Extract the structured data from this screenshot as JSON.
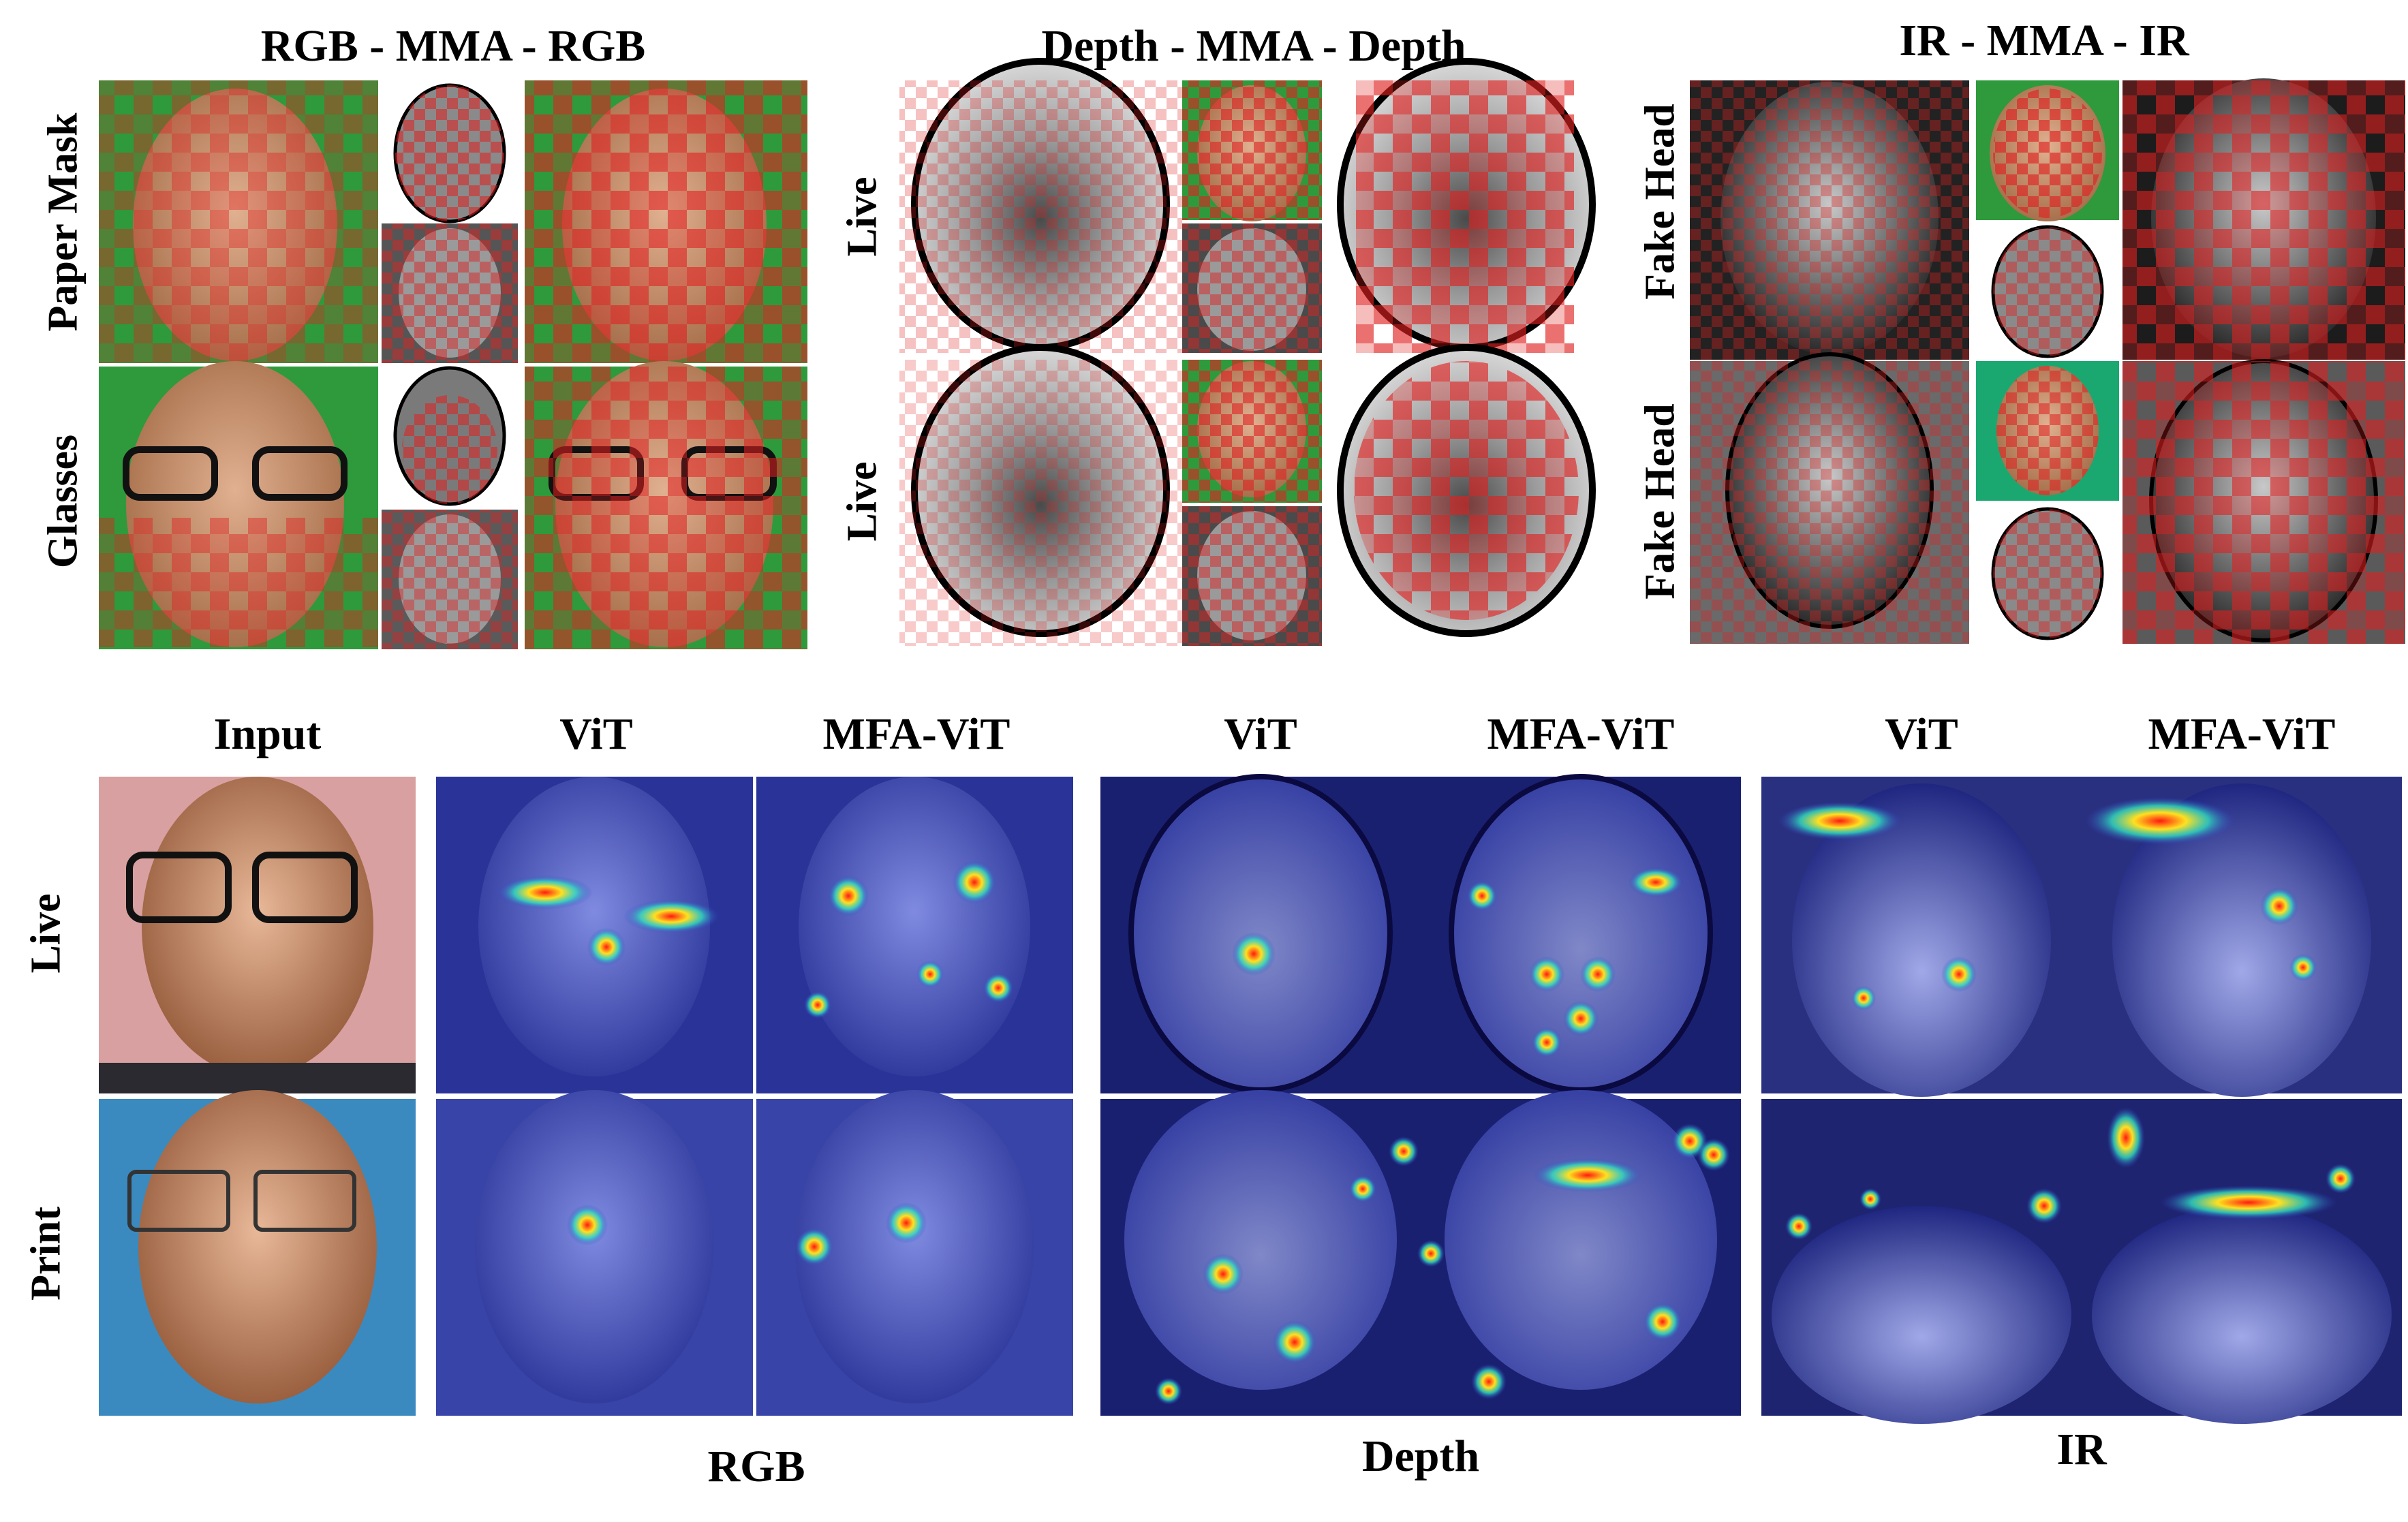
{
  "top": {
    "groups": [
      {
        "title": "RGB - MMA - RGB",
        "rows": [
          "Paper Mask",
          "Glasses"
        ]
      },
      {
        "title": "Depth - MMA - Depth",
        "rows": [
          "Live",
          "Live"
        ]
      },
      {
        "title": "IR - MMA - IR",
        "rows": [
          "Fake Head",
          "Fake Head"
        ]
      }
    ]
  },
  "bottom": {
    "column_headers": [
      "Input",
      "ViT",
      "MFA-ViT",
      "ViT",
      "MFA-ViT",
      "ViT",
      "MFA-ViT"
    ],
    "row_labels": [
      "Live",
      "Print"
    ],
    "modality_labels": [
      "RGB",
      "Depth",
      "IR"
    ]
  },
  "colors": {
    "mask_red": "#e02020",
    "green_bg": "#2e9a3c",
    "skin": "#c99070",
    "depth_gray": "#9a9a9a",
    "ir_gray": "#6a6a6a",
    "heat_blue": "#3140c8",
    "heat_hot": "#ff2a1a"
  }
}
